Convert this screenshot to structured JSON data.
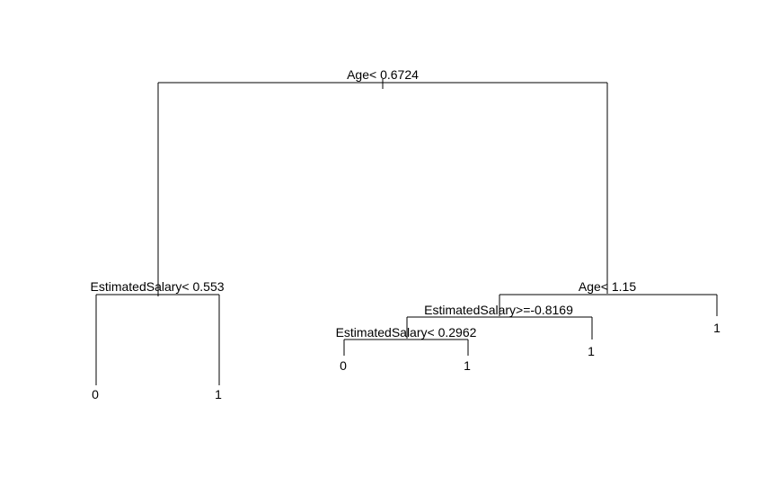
{
  "tree": {
    "root_split": "Age< 0.6724",
    "left_split": "EstimatedSalary< 0.553",
    "right_split": "Age< 1.15",
    "right_left_split": "EstimatedSalary>=-0.8169",
    "right_left_left_split": "EstimatedSalary< 0.2962",
    "leaf_ll": "0",
    "leaf_lr": "1",
    "leaf_rlll": "0",
    "leaf_rllr": "1",
    "leaf_rlr": "1",
    "leaf_rr": "1"
  }
}
